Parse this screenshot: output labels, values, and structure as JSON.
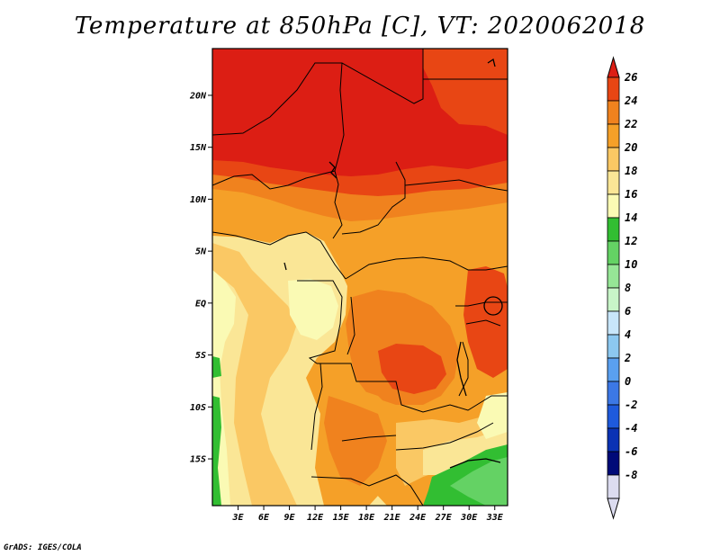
{
  "title": "Temperature at 850hPa [C], VT: 2020062018",
  "credit": "GrADS: IGES/COLA",
  "map": {
    "lat_range": [
      -19.5,
      24.5
    ],
    "lon_range": [
      0,
      34.5
    ],
    "lat_labels": [
      {
        "value": 20,
        "text": "20N"
      },
      {
        "value": 15,
        "text": "15N"
      },
      {
        "value": 10,
        "text": "10N"
      },
      {
        "value": 5,
        "text": "5N"
      },
      {
        "value": 0,
        "text": "EQ"
      },
      {
        "value": -5,
        "text": "5S"
      },
      {
        "value": -10,
        "text": "10S"
      },
      {
        "value": -15,
        "text": "15S"
      }
    ],
    "lon_labels": [
      {
        "value": 3,
        "text": "3E"
      },
      {
        "value": 6,
        "text": "6E"
      },
      {
        "value": 9,
        "text": "9E"
      },
      {
        "value": 12,
        "text": "12E"
      },
      {
        "value": 15,
        "text": "15E"
      },
      {
        "value": 18,
        "text": "18E"
      },
      {
        "value": 21,
        "text": "21E"
      },
      {
        "value": 24,
        "text": "24E"
      },
      {
        "value": 27,
        "text": "27E"
      },
      {
        "value": 30,
        "text": "30E"
      },
      {
        "value": 33,
        "text": "33E"
      }
    ]
  },
  "colorbar": {
    "levels": [
      {
        "label": "26",
        "color": "#dc1e14"
      },
      {
        "label": "24",
        "color": "#e84614"
      },
      {
        "label": "22",
        "color": "#f0821e"
      },
      {
        "label": "20",
        "color": "#f5a028"
      },
      {
        "label": "18",
        "color": "#fac864"
      },
      {
        "label": "16",
        "color": "#fae696"
      },
      {
        "label": "14",
        "color": "#fafab4"
      },
      {
        "label": "12",
        "color": "#32be32"
      },
      {
        "label": "10",
        "color": "#64d264"
      },
      {
        "label": "8",
        "color": "#96e696"
      },
      {
        "label": "6",
        "color": "#c8f5c8"
      },
      {
        "label": "4",
        "color": "#c8e6fa"
      },
      {
        "label": "2",
        "color": "#8cc8f0"
      },
      {
        "label": "0",
        "color": "#5aa0f0"
      },
      {
        "label": "-2",
        "color": "#3c78e6"
      },
      {
        "label": "-4",
        "color": "#1e5adc"
      },
      {
        "label": "-6",
        "color": "#0a32b4"
      },
      {
        "label": "-8",
        "color": "#000a78"
      }
    ],
    "bottom_color": "#dcdcf0"
  }
}
